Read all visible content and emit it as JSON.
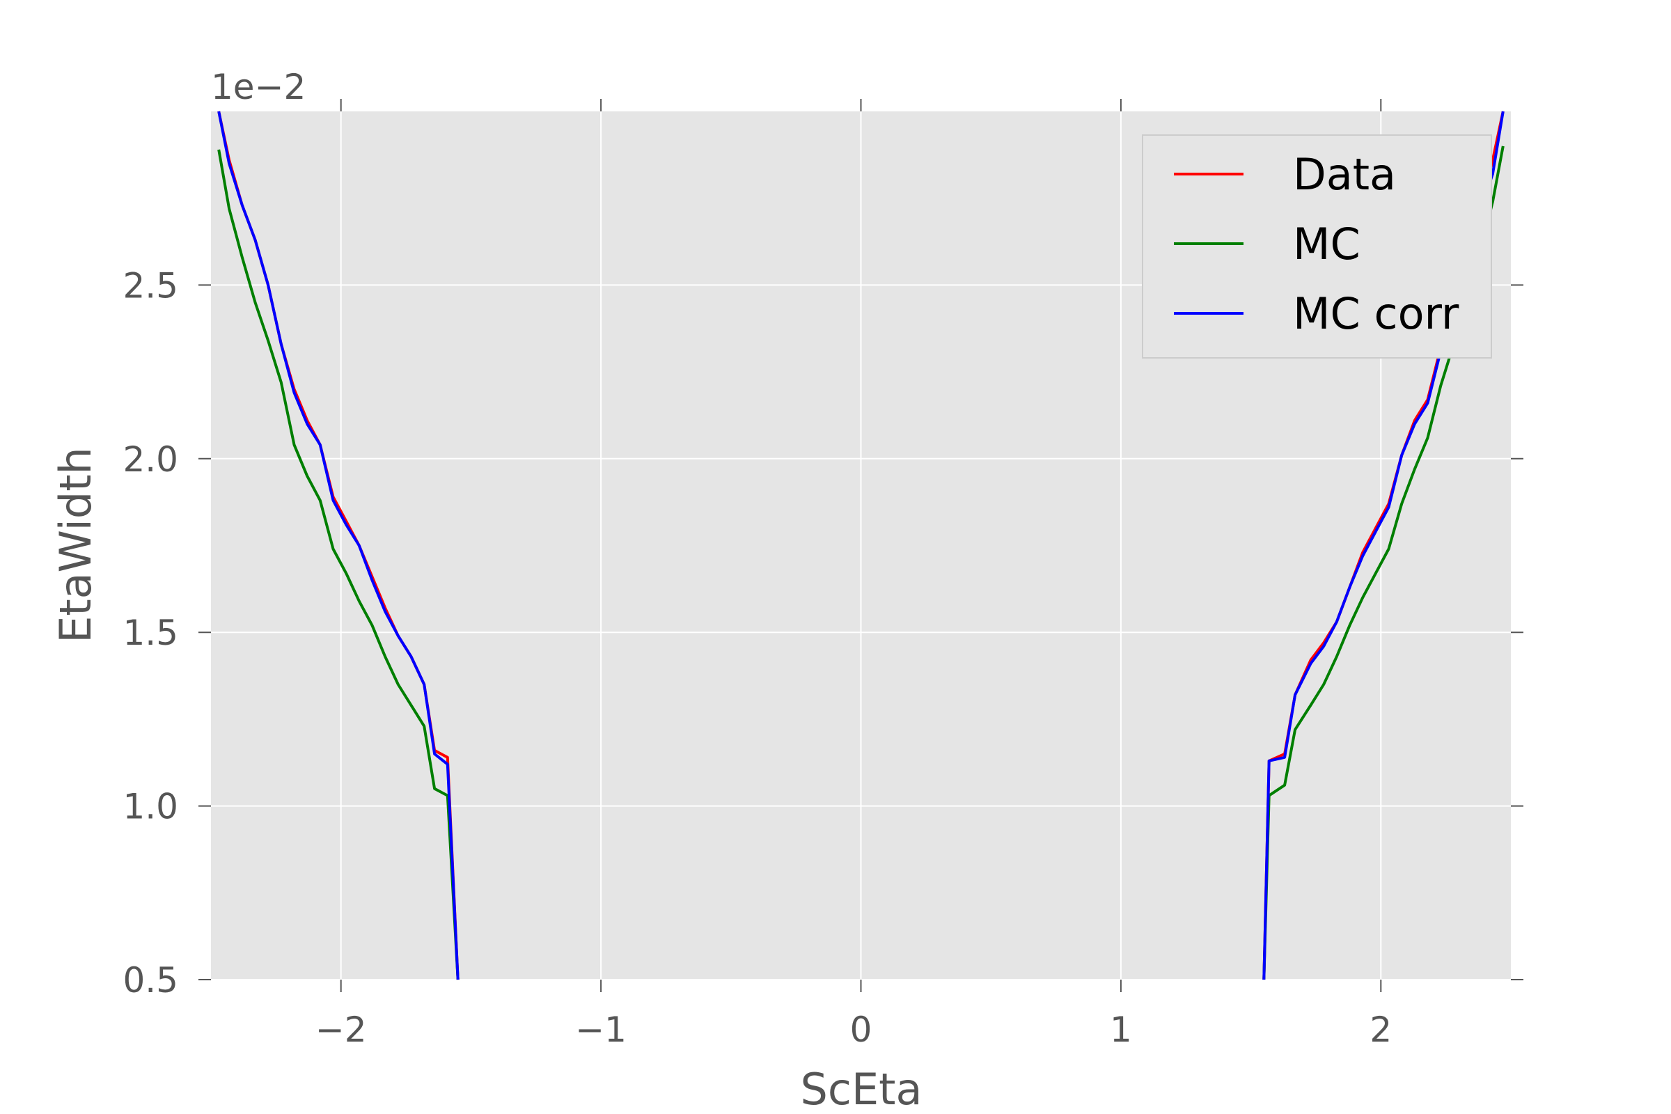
{
  "chart_data": {
    "type": "line",
    "xlabel": "ScEta",
    "ylabel": "EtaWidth",
    "y_offset_label": "1e−2",
    "xlim": [
      -2.5,
      2.5
    ],
    "ylim": [
      0.5,
      3.0
    ],
    "xticks": [
      -2,
      -1,
      0,
      1,
      2
    ],
    "xtick_labels": [
      "−2",
      "−1",
      "0",
      "1",
      "2"
    ],
    "yticks": [
      0.5,
      1.0,
      1.5,
      2.0,
      2.5
    ],
    "ytick_labels": [
      "0.5",
      "1.0",
      "1.5",
      "2.0",
      "2.5"
    ],
    "grid": true,
    "legend_position": "top-right",
    "series": [
      {
        "name": "Data",
        "color": "#ff0000",
        "segments": [
          [
            [
              -2.47,
              3.0
            ],
            [
              -2.43,
              2.86
            ],
            [
              -2.38,
              2.73
            ],
            [
              -2.33,
              2.63
            ],
            [
              -2.28,
              2.5
            ],
            [
              -2.23,
              2.33
            ],
            [
              -2.18,
              2.2
            ],
            [
              -2.13,
              2.11
            ],
            [
              -2.08,
              2.04
            ],
            [
              -2.03,
              1.89
            ],
            [
              -1.98,
              1.82
            ],
            [
              -1.93,
              1.75
            ],
            [
              -1.88,
              1.66
            ],
            [
              -1.83,
              1.57
            ],
            [
              -1.78,
              1.49
            ],
            [
              -1.73,
              1.43
            ],
            [
              -1.68,
              1.35
            ],
            [
              -1.64,
              1.16
            ],
            [
              -1.59,
              1.14
            ],
            [
              -1.55,
              0.5
            ]
          ],
          [
            [
              1.55,
              0.5
            ],
            [
              1.57,
              1.13
            ],
            [
              1.63,
              1.15
            ],
            [
              1.67,
              1.32
            ],
            [
              1.73,
              1.42
            ],
            [
              1.78,
              1.47
            ],
            [
              1.83,
              1.53
            ],
            [
              1.88,
              1.63
            ],
            [
              1.93,
              1.73
            ],
            [
              1.98,
              1.8
            ],
            [
              2.03,
              1.87
            ],
            [
              2.08,
              2.01
            ],
            [
              2.13,
              2.11
            ],
            [
              2.18,
              2.17
            ],
            [
              2.23,
              2.32
            ],
            [
              2.28,
              2.48
            ],
            [
              2.33,
              2.63
            ],
            [
              2.38,
              2.72
            ],
            [
              2.43,
              2.86
            ],
            [
              2.47,
              3.0
            ]
          ]
        ]
      },
      {
        "name": "MC",
        "color": "#007f00",
        "segments": [
          [
            [
              -2.47,
              2.89
            ],
            [
              -2.43,
              2.72
            ],
            [
              -2.38,
              2.58
            ],
            [
              -2.33,
              2.45
            ],
            [
              -2.28,
              2.34
            ],
            [
              -2.23,
              2.22
            ],
            [
              -2.18,
              2.04
            ],
            [
              -2.13,
              1.95
            ],
            [
              -2.08,
              1.88
            ],
            [
              -2.03,
              1.74
            ],
            [
              -1.98,
              1.67
            ],
            [
              -1.93,
              1.59
            ],
            [
              -1.88,
              1.52
            ],
            [
              -1.83,
              1.43
            ],
            [
              -1.78,
              1.35
            ],
            [
              -1.73,
              1.29
            ],
            [
              -1.68,
              1.23
            ],
            [
              -1.64,
              1.05
            ],
            [
              -1.59,
              1.03
            ],
            [
              -1.55,
              0.5
            ]
          ],
          [
            [
              1.55,
              0.5
            ],
            [
              1.57,
              1.03
            ],
            [
              1.63,
              1.06
            ],
            [
              1.67,
              1.22
            ],
            [
              1.73,
              1.29
            ],
            [
              1.78,
              1.35
            ],
            [
              1.83,
              1.43
            ],
            [
              1.88,
              1.52
            ],
            [
              1.93,
              1.6
            ],
            [
              1.98,
              1.67
            ],
            [
              2.03,
              1.74
            ],
            [
              2.08,
              1.87
            ],
            [
              2.13,
              1.97
            ],
            [
              2.18,
              2.06
            ],
            [
              2.23,
              2.21
            ],
            [
              2.28,
              2.33
            ],
            [
              2.33,
              2.45
            ],
            [
              2.38,
              2.59
            ],
            [
              2.43,
              2.74
            ],
            [
              2.47,
              2.9
            ]
          ]
        ]
      },
      {
        "name": "MC corr",
        "color": "#0000ff",
        "segments": [
          [
            [
              -2.47,
              3.0
            ],
            [
              -2.43,
              2.85
            ],
            [
              -2.38,
              2.73
            ],
            [
              -2.33,
              2.63
            ],
            [
              -2.28,
              2.5
            ],
            [
              -2.23,
              2.33
            ],
            [
              -2.18,
              2.19
            ],
            [
              -2.13,
              2.1
            ],
            [
              -2.08,
              2.04
            ],
            [
              -2.03,
              1.88
            ],
            [
              -1.98,
              1.81
            ],
            [
              -1.93,
              1.75
            ],
            [
              -1.88,
              1.65
            ],
            [
              -1.83,
              1.56
            ],
            [
              -1.78,
              1.49
            ],
            [
              -1.73,
              1.43
            ],
            [
              -1.68,
              1.35
            ],
            [
              -1.64,
              1.15
            ],
            [
              -1.59,
              1.12
            ],
            [
              -1.55,
              0.5
            ]
          ],
          [
            [
              1.55,
              0.5
            ],
            [
              1.57,
              1.13
            ],
            [
              1.63,
              1.14
            ],
            [
              1.67,
              1.32
            ],
            [
              1.73,
              1.41
            ],
            [
              1.78,
              1.46
            ],
            [
              1.83,
              1.53
            ],
            [
              1.88,
              1.63
            ],
            [
              1.93,
              1.72
            ],
            [
              1.98,
              1.79
            ],
            [
              2.03,
              1.86
            ],
            [
              2.08,
              2.01
            ],
            [
              2.13,
              2.1
            ],
            [
              2.18,
              2.16
            ],
            [
              2.23,
              2.31
            ],
            [
              2.28,
              2.47
            ],
            [
              2.33,
              2.62
            ],
            [
              2.38,
              2.71
            ],
            [
              2.43,
              2.82
            ],
            [
              2.47,
              3.0
            ]
          ]
        ]
      }
    ]
  }
}
